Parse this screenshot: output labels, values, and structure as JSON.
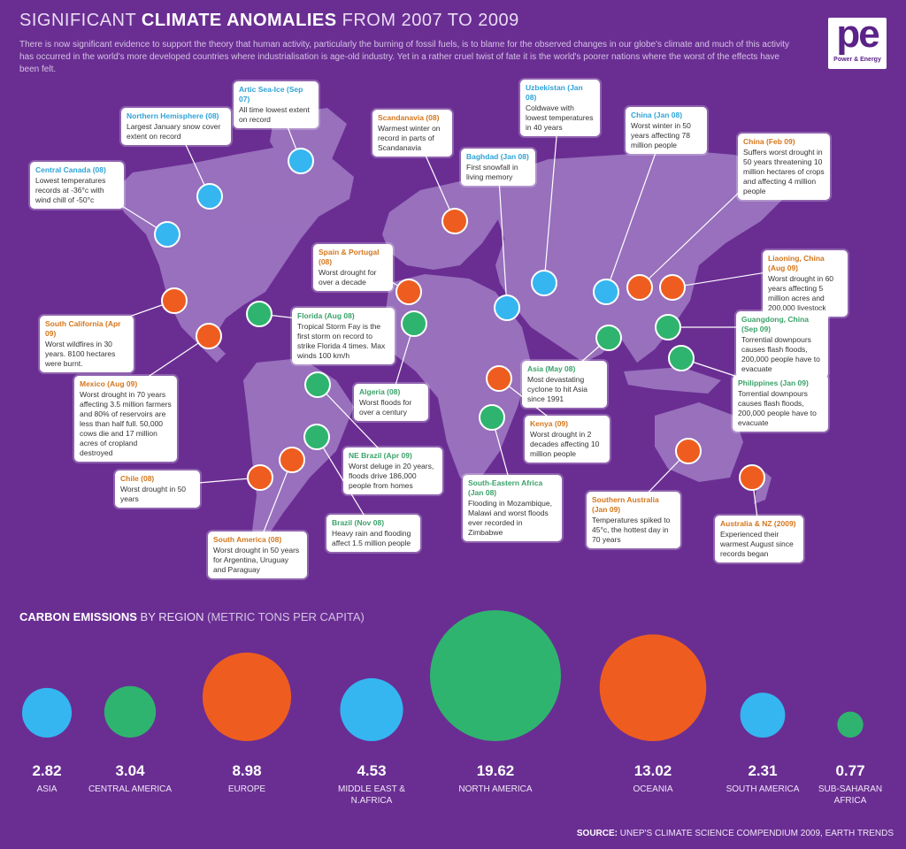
{
  "header": {
    "title_pre": "SIGNIFICANT ",
    "title_bold": "CLIMATE ANOMALIES",
    "title_post": " FROM 2007 TO 2009",
    "intro": "There is now significant evidence to support the theory that human activity, particularly the burning of fossil fuels, is to blame for the observed changes in our globe's climate and much of this activity has occurred in the world's more developed countries where industrialisation is age-old industry. Yet in a rather cruel twist of fate it is the world's poorer nations where the worst of the effects have been felt."
  },
  "logo": {
    "mark": "pe",
    "text": "Power & Energy"
  },
  "colors": {
    "background": "#6a2e93",
    "land": "#9b74bf",
    "blue": "#35b6f0",
    "orange": "#ee5d1f",
    "green": "#2fb46f"
  },
  "anomalies": [
    {
      "title": "Artic Sea-Ice (Sep 07)",
      "text": "All time lowest extent on record",
      "color": "blue"
    },
    {
      "title": "Northern Hemisphere (08)",
      "text": "Largest January snow cover extent on record",
      "color": "blue"
    },
    {
      "title": "Central Canada (08)",
      "text": "Lowest temperatures records at -36°c with wind chill of -50°c",
      "color": "blue"
    },
    {
      "title": "Scandanavia (08)",
      "text": "Warmest winter on record in parts of Scandanavia",
      "color": "orange"
    },
    {
      "title": "Baghdad (Jan 08)",
      "text": "First snowfall in living memory",
      "color": "blue"
    },
    {
      "title": "Uzbekistan (Jan 08)",
      "text": "Coldwave with lowest temperatures in 40 years",
      "color": "blue"
    },
    {
      "title": "China (Jan 08)",
      "text": "Worst winter in 50 years affecting 78 million people",
      "color": "blue"
    },
    {
      "title": "China (Feb 09)",
      "text": "Suffers worst drought in 50 years threatening 10 million hectares of crops and affecting 4 million people",
      "color": "orange"
    },
    {
      "title": "Spain & Portugal (08)",
      "text": "Worst drought for over a decade",
      "color": "orange"
    },
    {
      "title": "Liaoning, China (Aug 09)",
      "text": "Worst drought in 60 years affecting 5 million acres and 200,000 livestock",
      "color": "orange"
    },
    {
      "title": "South California (Apr 09)",
      "text": "Worst wildfires in 30 years. 8100 hectares were burnt.",
      "color": "orange"
    },
    {
      "title": "Florida (Aug 08)",
      "text": "Tropical Storm Fay is the first storm on record to strike Florida 4 times. Max winds 100 km/h",
      "color": "green"
    },
    {
      "title": "Guangdong, China (Sep 09)",
      "text": "Torrential downpours causes flash floods, 200,000 people have to evacuate",
      "color": "green"
    },
    {
      "title": "Mexico (Aug 09)",
      "text": "Worst drought in 70 years affecting 3.5 million farmers and 80% of reservoirs are less than half full. 50,000 cows die and 17 million acres of cropland destroyed",
      "color": "orange"
    },
    {
      "title": "Algeria (08)",
      "text": "Worst floods for over a century",
      "color": "green"
    },
    {
      "title": "Asia (May 08)",
      "text": "Most devastating cyclone to hit Asia since 1991",
      "color": "green"
    },
    {
      "title": "Philippines (Jan 09)",
      "text": "Torrential downpours causes flash floods, 200,000 people have to evacuate",
      "color": "green"
    },
    {
      "title": "Kenya (09)",
      "text": "Worst drought in 2 decades affecting 10 million people",
      "color": "orange"
    },
    {
      "title": "NE Brazil (Apr 09)",
      "text": "Worst deluge in 20 years, floods drive 186,000 people from homes",
      "color": "green"
    },
    {
      "title": "Chile (08)",
      "text": "Worst drought in 50 years",
      "color": "orange"
    },
    {
      "title": "South-Eastern Africa (Jan 08)",
      "text": "Flooding in Mozambique, Malawi and worst floods ever recorded in Zimbabwe",
      "color": "green"
    },
    {
      "title": "Southern Australia (Jan 09)",
      "text": "Temperatures spiked to 45°c, the hottest day in 70 years",
      "color": "orange"
    },
    {
      "title": "Brazil (Nov 08)",
      "text": "Heavy rain and flooding affect 1.5 million people",
      "color": "green"
    },
    {
      "title": "South America (08)",
      "text": "Worst drought in 50 years for Argentina, Uruguay and Paraguay",
      "color": "orange"
    },
    {
      "title": "Australia & NZ (2009)",
      "text": "Experienced their warmest August since records began",
      "color": "orange"
    }
  ],
  "emissions": {
    "heading_bold": "CARBON EMISSIONS",
    "heading_mid": " BY REGION ",
    "heading_small": "(METRIC TONS PER CAPITA)",
    "regions": [
      {
        "value": 2.82,
        "label": "ASIA",
        "color": "blue"
      },
      {
        "value": 3.04,
        "label": "CENTRAL AMERICA",
        "color": "green"
      },
      {
        "value": 8.98,
        "label": "EUROPE",
        "color": "orange"
      },
      {
        "value": 4.53,
        "label": "MIDDLE EAST & N.AFRICA",
        "color": "blue"
      },
      {
        "value": 19.62,
        "label": "NORTH AMERICA",
        "color": "green"
      },
      {
        "value": 13.02,
        "label": "OCEANIA",
        "color": "orange"
      },
      {
        "value": 2.31,
        "label": "SOUTH AMERICA",
        "color": "blue"
      },
      {
        "value": 0.77,
        "label": "SUB-SAHARAN AFRICA",
        "color": "green"
      }
    ]
  },
  "source": {
    "prefix": "SOURCE: ",
    "text": "UNEP'S CLIMATE SCIENCE COMPENDIUM 2009, EARTH TRENDS"
  }
}
